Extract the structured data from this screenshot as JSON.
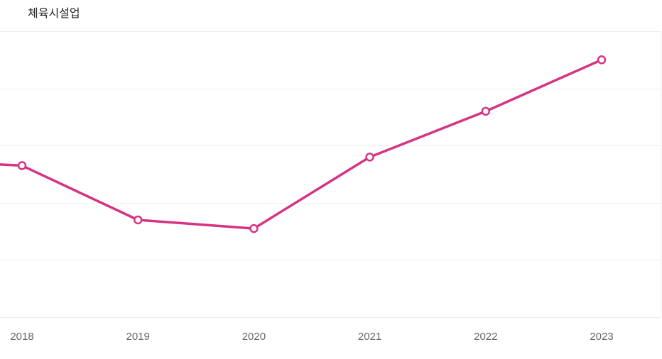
{
  "chart_data": {
    "type": "line",
    "title": "체육시설업",
    "xlabel": "",
    "ylabel": "",
    "categories": [
      "2018",
      "2019",
      "2020",
      "2021",
      "2022",
      "2023"
    ],
    "series": [
      {
        "values": [
          5.3,
          3.4,
          3.1,
          5.6,
          7.2,
          9.0
        ]
      }
    ],
    "prev_value": 5.5,
    "ylim": [
      0,
      10
    ],
    "y_gridlines": [
      0,
      2,
      4,
      6,
      8,
      10
    ],
    "grid": true,
    "legend": "none",
    "colors": {
      "line": "#d63384",
      "grid": "#eeeeee",
      "tick_text": "#666666"
    }
  }
}
